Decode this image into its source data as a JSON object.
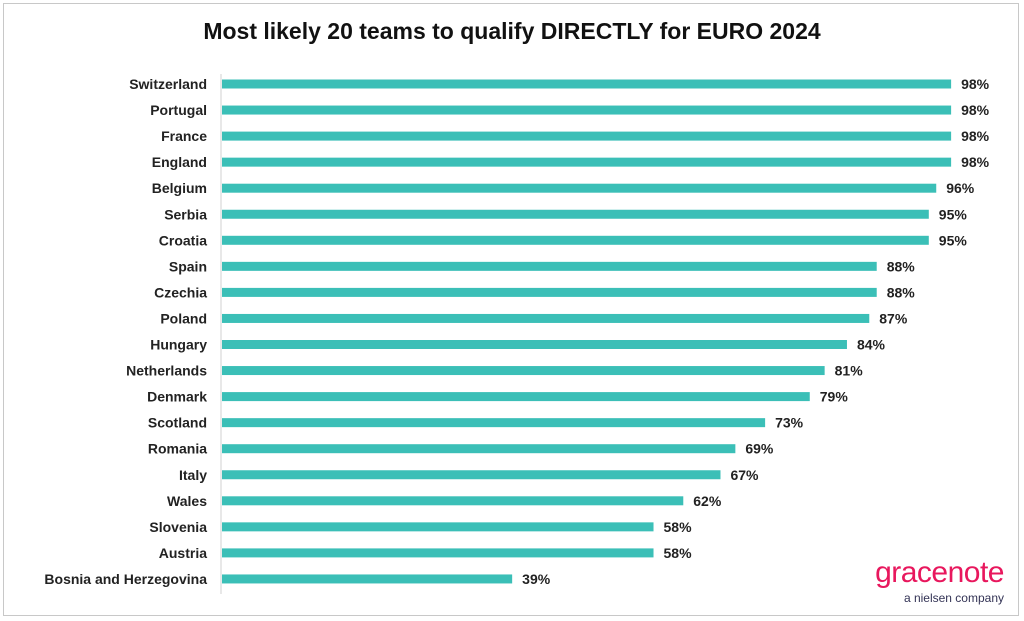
{
  "chart_data": {
    "type": "bar",
    "orientation": "horizontal",
    "title": "Most likely 20 teams to qualify DIRECTLY for EURO 2024",
    "categories": [
      "Switzerland",
      "Portugal",
      "France",
      "England",
      "Belgium",
      "Serbia",
      "Croatia",
      "Spain",
      "Czechia",
      "Poland",
      "Hungary",
      "Netherlands",
      "Denmark",
      "Scotland",
      "Romania",
      "Italy",
      "Wales",
      "Slovenia",
      "Austria",
      "Bosnia and Herzegovina"
    ],
    "values": [
      98,
      98,
      98,
      98,
      96,
      95,
      95,
      88,
      88,
      87,
      84,
      81,
      79,
      73,
      69,
      67,
      62,
      58,
      58,
      39
    ],
    "value_labels": [
      "98%",
      "98%",
      "98%",
      "98%",
      "96%",
      "95%",
      "95%",
      "88%",
      "88%",
      "87%",
      "84%",
      "81%",
      "79%",
      "73%",
      "69%",
      "67%",
      "62%",
      "58%",
      "58%",
      "39%"
    ],
    "xlim": [
      0,
      100
    ],
    "xlabel": "",
    "ylabel": "",
    "bar_color": "#3bbfb7",
    "grid": false,
    "legend": "none"
  },
  "brand": {
    "name": "gracenote",
    "tagline": "a nielsen company",
    "color": "#e8175d"
  }
}
